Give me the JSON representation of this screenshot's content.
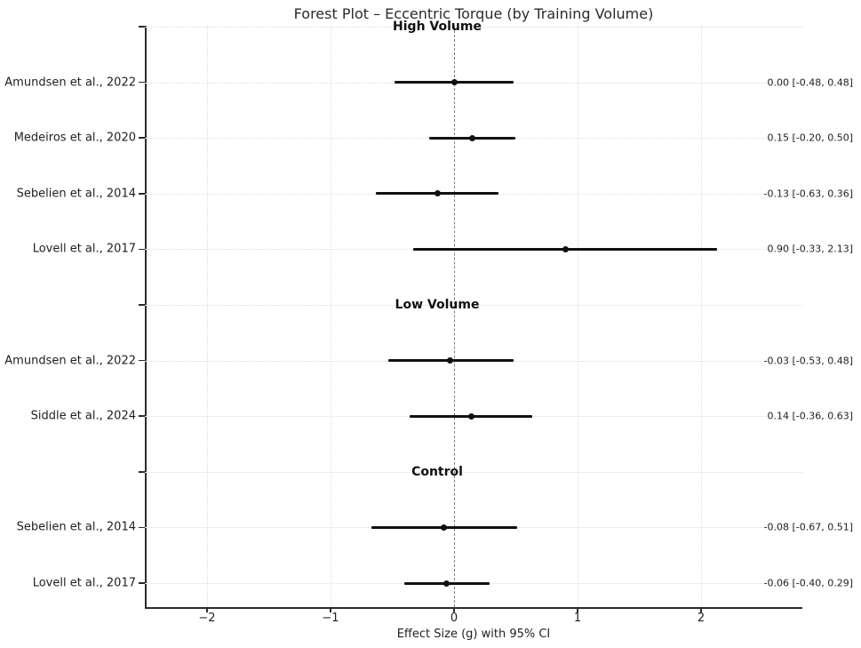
{
  "chart_data": {
    "type": "forest",
    "title": "Forest Plot – Eccentric Torque (by Training Volume)",
    "xlabel": "Effect Size (g) with 95% CI",
    "xlim": [
      -2.5,
      2.82
    ],
    "grid": true,
    "zero_reference_line": 0,
    "x_ticks": [
      {
        "value": -2,
        "label": "−2"
      },
      {
        "value": -1,
        "label": "−1"
      },
      {
        "value": 0,
        "label": "0"
      },
      {
        "value": 1,
        "label": "1"
      },
      {
        "value": 2,
        "label": "2"
      }
    ],
    "rows": [
      {
        "kind": "group",
        "label": "High Volume"
      },
      {
        "kind": "study",
        "label": "Amundsen et al., 2022",
        "effect": 0.0,
        "ci_low": -0.48,
        "ci_high": 0.48,
        "value_text": "0.00 [-0.48, 0.48]"
      },
      {
        "kind": "study",
        "label": "Medeiros et al., 2020",
        "effect": 0.15,
        "ci_low": -0.2,
        "ci_high": 0.5,
        "value_text": "0.15 [-0.20, 0.50]"
      },
      {
        "kind": "study",
        "label": "Sebelien et al., 2014",
        "effect": -0.13,
        "ci_low": -0.63,
        "ci_high": 0.36,
        "value_text": "-0.13 [-0.63, 0.36]"
      },
      {
        "kind": "study",
        "label": "Lovell et al., 2017",
        "effect": 0.9,
        "ci_low": -0.33,
        "ci_high": 2.13,
        "value_text": "0.90 [-0.33, 2.13]"
      },
      {
        "kind": "group",
        "label": "Low Volume"
      },
      {
        "kind": "study",
        "label": "Amundsen et al., 2022",
        "effect": -0.03,
        "ci_low": -0.53,
        "ci_high": 0.48,
        "value_text": "-0.03 [-0.53, 0.48]"
      },
      {
        "kind": "study",
        "label": "Siddle et al., 2024",
        "effect": 0.14,
        "ci_low": -0.36,
        "ci_high": 0.63,
        "value_text": "0.14 [-0.36, 0.63]"
      },
      {
        "kind": "group",
        "label": "Control"
      },
      {
        "kind": "study",
        "label": "Sebelien et al., 2014",
        "effect": -0.08,
        "ci_low": -0.67,
        "ci_high": 0.51,
        "value_text": "-0.08 [-0.67, 0.51]"
      },
      {
        "kind": "study",
        "label": "Lovell et al., 2017",
        "effect": -0.06,
        "ci_low": -0.4,
        "ci_high": 0.29,
        "value_text": "-0.06 [-0.40, 0.29]"
      }
    ],
    "colors": {
      "marker": "#111111",
      "ci_line": "#111111",
      "grid": "#dcdcdc",
      "zero_line": "#7d7d7d",
      "spine": "#2b2b2b",
      "text": "#1f1f1f"
    }
  }
}
